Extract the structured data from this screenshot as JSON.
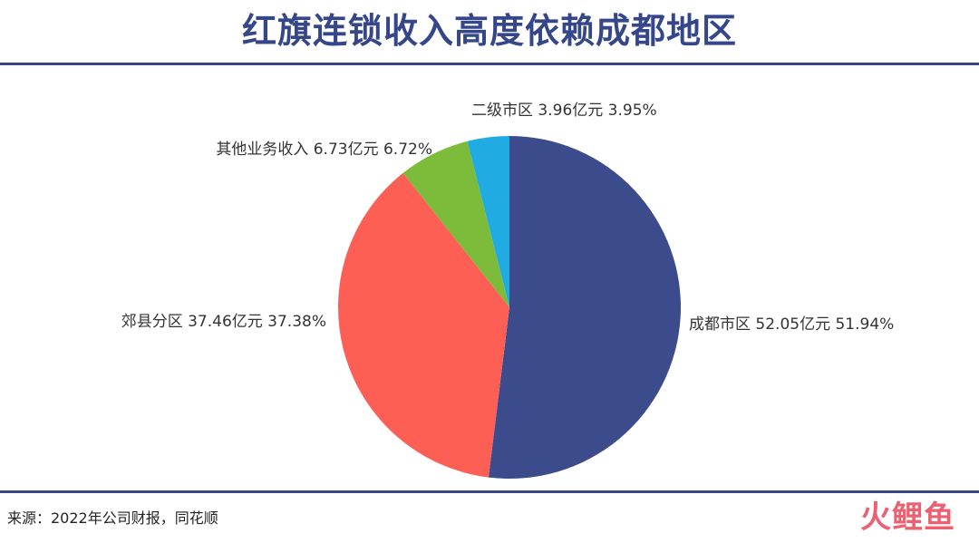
{
  "title": "红旗连锁收入高度依赖成都地区",
  "source": "来源：2022年公司财报，同花顺",
  "watermark": "火鲤鱼",
  "chart_data": {
    "type": "pie",
    "title": "红旗连锁收入高度依赖成都地区",
    "start_angle_deg": 0,
    "direction": "clockwise",
    "slices": [
      {
        "name": "成都市区",
        "value": 52.05,
        "unit": "亿元",
        "percent": "51.94%",
        "color": "#3c4b8b",
        "label": "成都市区 52.05亿元 51.94%"
      },
      {
        "name": "郊县分区",
        "value": 37.46,
        "unit": "亿元",
        "percent": "37.38%",
        "color": "#fe5f55",
        "label": "郊县分区 37.46亿元 37.38%"
      },
      {
        "name": "其他业务收入",
        "value": 6.73,
        "unit": "亿元",
        "percent": "6.72%",
        "color": "#7dbc3b",
        "label": "其他业务收入 6.73亿元 6.72%"
      },
      {
        "name": "二级市区",
        "value": 3.96,
        "unit": "亿元",
        "percent": "3.95%",
        "color": "#20ace3",
        "label": "二级市区 3.96亿元 3.95%"
      }
    ],
    "legend": "none"
  }
}
